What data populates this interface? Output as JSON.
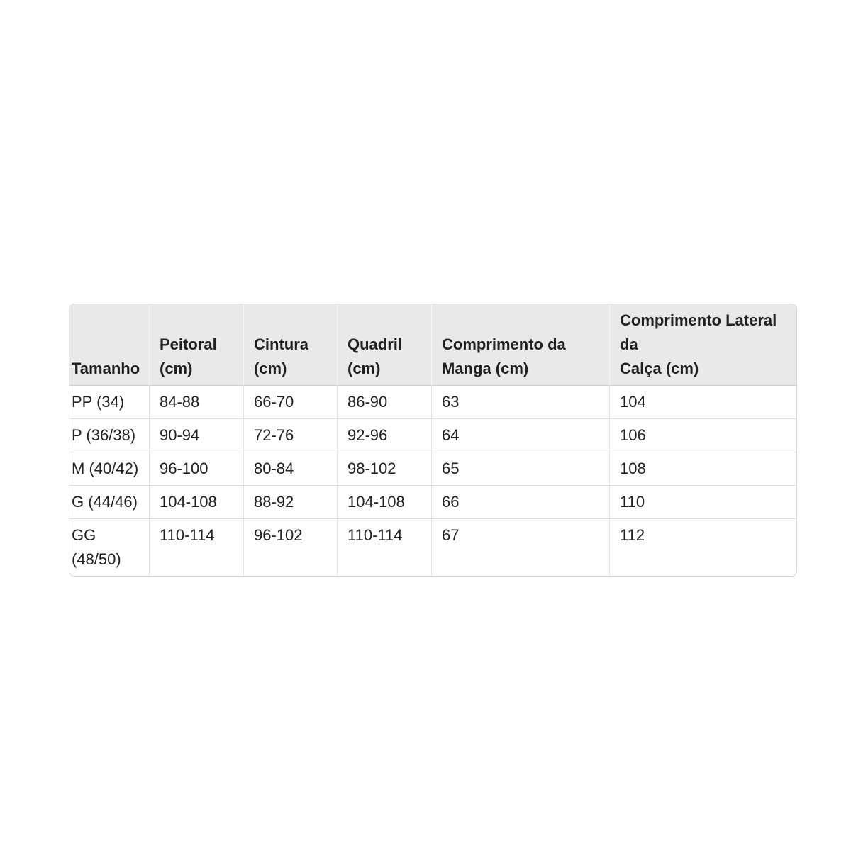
{
  "table": {
    "title": "size-chart",
    "unit": "cm",
    "columns": [
      "Tamanho",
      "Peitoral\n(cm)",
      "Cintura\n(cm)",
      "Quadril\n(cm)",
      "Comprimento da\nManga (cm)",
      "Comprimento Lateral da\nCalça (cm)"
    ],
    "rows": [
      [
        "PP (34)",
        "84-88",
        "66-70",
        "86-90",
        "63",
        "104"
      ],
      [
        "P (36/38)",
        "90-94",
        "72-76",
        "92-96",
        "64",
        "106"
      ],
      [
        "M (40/42)",
        "96-100",
        "80-84",
        "98-102",
        "65",
        "108"
      ],
      [
        "G (44/46)",
        "104-108",
        "88-92",
        "104-108",
        "66",
        "110"
      ],
      [
        "GG\n(48/50)",
        "110-114",
        "96-102",
        "110-114",
        "67",
        "112"
      ]
    ],
    "colors": {
      "header_bg": "#e9e9e9",
      "outer_border": "#d4d4d4",
      "row_divider": "#dcdcdc",
      "column_divider_body": "#e3e3e3",
      "column_divider_header": "#f4f4f4",
      "text": "#212121",
      "page_bg": "#ffffff"
    }
  }
}
